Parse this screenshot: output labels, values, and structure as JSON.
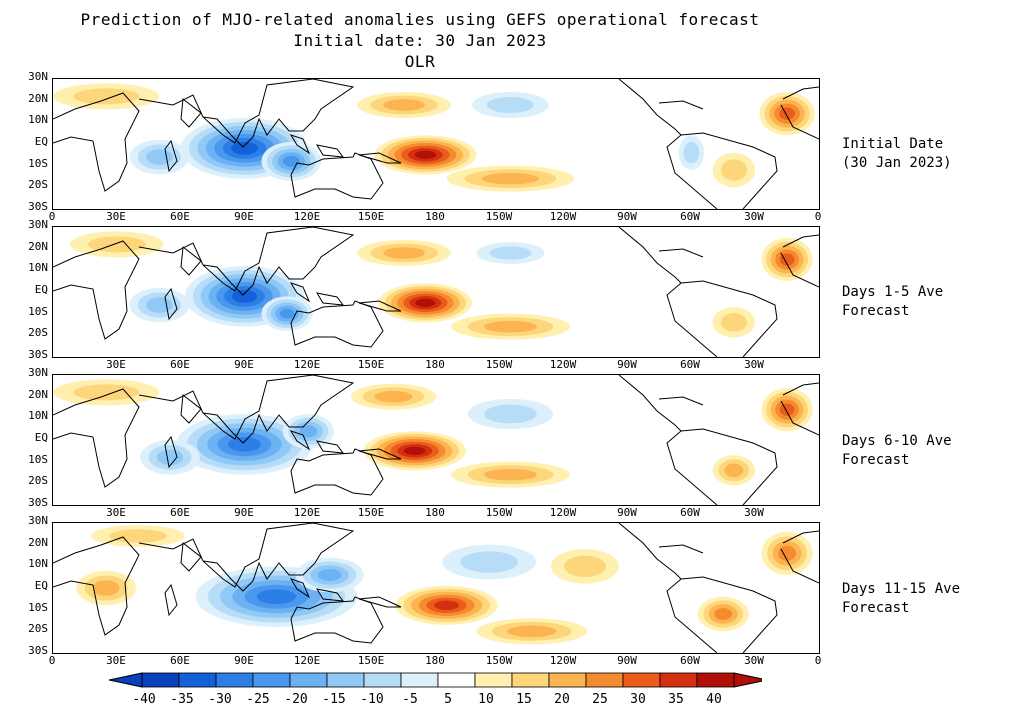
{
  "title": {
    "line1": "Prediction of MJO-related anomalies using GEFS operational forecast",
    "line2": "Initial date: 30 Jan 2023",
    "line3": "OLR"
  },
  "lat_labels": [
    "30N",
    "20N",
    "10N",
    "EQ",
    "10S",
    "20S",
    "30S"
  ],
  "lon_labels": [
    "0",
    "30E",
    "60E",
    "90E",
    "120E",
    "150E",
    "180",
    "150W",
    "120W",
    "90W",
    "60W",
    "30W",
    "0"
  ],
  "panels": [
    {
      "label_line1": "Initial Date",
      "label_line2": "(30 Jan 2023)"
    },
    {
      "label_line1": "Days 1-5 Ave",
      "label_line2": "Forecast"
    },
    {
      "label_line1": "Days 6-10 Ave",
      "label_line2": "Forecast"
    },
    {
      "label_line1": "Days 11-15 Ave",
      "label_line2": "Forecast"
    }
  ],
  "colorbar": {
    "labels": [
      "-40",
      "-35",
      "-30",
      "-25",
      "-20",
      "-15",
      "-10",
      "-5",
      "5",
      "10",
      "15",
      "20",
      "25",
      "30",
      "35",
      "40"
    ],
    "colors": [
      "#0a3fbe",
      "#1460d8",
      "#2a7ee6",
      "#4a98ee",
      "#6cb2f3",
      "#90c8f6",
      "#b6dcf8",
      "#dcf0fb",
      "#ffffff",
      "#fff0b0",
      "#fdd57a",
      "#fbb450",
      "#f68a2e",
      "#ea5c1c",
      "#d33010",
      "#b01008"
    ]
  },
  "map_fields": [
    {
      "anomalies": [
        {
          "lon": 90,
          "lat": -2,
          "rx": 30,
          "ry": 14,
          "level": -7
        },
        {
          "lon": 112,
          "lat": -8,
          "rx": 14,
          "ry": 9,
          "level": -5
        },
        {
          "lon": 50,
          "lat": -6,
          "rx": 14,
          "ry": 8,
          "level": -3
        },
        {
          "lon": 215,
          "lat": 18,
          "rx": 18,
          "ry": 6,
          "level": -2
        },
        {
          "lon": 300,
          "lat": -4,
          "rx": 6,
          "ry": 8,
          "level": -2
        },
        {
          "lon": 175,
          "lat": -5,
          "rx": 24,
          "ry": 9,
          "level": 7
        },
        {
          "lon": 215,
          "lat": -16,
          "rx": 30,
          "ry": 6,
          "level": 3
        },
        {
          "lon": 165,
          "lat": 18,
          "rx": 22,
          "ry": 6,
          "level": 3
        },
        {
          "lon": 345,
          "lat": 14,
          "rx": 13,
          "ry": 10,
          "level": 5
        },
        {
          "lon": 25,
          "lat": 22,
          "rx": 25,
          "ry": 6,
          "level": 2
        },
        {
          "lon": 320,
          "lat": -12,
          "rx": 10,
          "ry": 8,
          "level": 2
        }
      ]
    },
    {
      "anomalies": [
        {
          "lon": 90,
          "lat": -2,
          "rx": 28,
          "ry": 14,
          "level": -7
        },
        {
          "lon": 110,
          "lat": -10,
          "rx": 12,
          "ry": 8,
          "level": -5
        },
        {
          "lon": 50,
          "lat": -6,
          "rx": 14,
          "ry": 8,
          "level": -3
        },
        {
          "lon": 215,
          "lat": 18,
          "rx": 16,
          "ry": 5,
          "level": -2
        },
        {
          "lon": 175,
          "lat": -5,
          "rx": 22,
          "ry": 9,
          "level": 7
        },
        {
          "lon": 215,
          "lat": -16,
          "rx": 28,
          "ry": 6,
          "level": 3
        },
        {
          "lon": 165,
          "lat": 18,
          "rx": 22,
          "ry": 6,
          "level": 3
        },
        {
          "lon": 345,
          "lat": 15,
          "rx": 12,
          "ry": 10,
          "level": 5
        },
        {
          "lon": 30,
          "lat": 22,
          "rx": 22,
          "ry": 6,
          "level": 2
        },
        {
          "lon": 320,
          "lat": -14,
          "rx": 10,
          "ry": 7,
          "level": 2
        }
      ]
    },
    {
      "anomalies": [
        {
          "lon": 90,
          "lat": -2,
          "rx": 32,
          "ry": 14,
          "level": -6
        },
        {
          "lon": 120,
          "lat": 4,
          "rx": 12,
          "ry": 8,
          "level": -4
        },
        {
          "lon": 55,
          "lat": -8,
          "rx": 14,
          "ry": 8,
          "level": -3
        },
        {
          "lon": 215,
          "lat": 12,
          "rx": 20,
          "ry": 7,
          "level": -2
        },
        {
          "lon": 170,
          "lat": -5,
          "rx": 24,
          "ry": 9,
          "level": 7
        },
        {
          "lon": 215,
          "lat": -16,
          "rx": 28,
          "ry": 6,
          "level": 3
        },
        {
          "lon": 160,
          "lat": 20,
          "rx": 20,
          "ry": 6,
          "level": 3
        },
        {
          "lon": 345,
          "lat": 14,
          "rx": 12,
          "ry": 10,
          "level": 5
        },
        {
          "lon": 320,
          "lat": -14,
          "rx": 10,
          "ry": 7,
          "level": 3
        },
        {
          "lon": 25,
          "lat": 22,
          "rx": 25,
          "ry": 6,
          "level": 2
        }
      ]
    },
    {
      "anomalies": [
        {
          "lon": 105,
          "lat": -4,
          "rx": 38,
          "ry": 14,
          "level": -6
        },
        {
          "lon": 130,
          "lat": 6,
          "rx": 16,
          "ry": 8,
          "level": -4
        },
        {
          "lon": 205,
          "lat": 12,
          "rx": 22,
          "ry": 8,
          "level": -2
        },
        {
          "lon": 185,
          "lat": -8,
          "rx": 24,
          "ry": 9,
          "level": 6
        },
        {
          "lon": 225,
          "lat": -20,
          "rx": 26,
          "ry": 6,
          "level": 3
        },
        {
          "lon": 25,
          "lat": 0,
          "rx": 14,
          "ry": 8,
          "level": 3
        },
        {
          "lon": 345,
          "lat": 16,
          "rx": 12,
          "ry": 10,
          "level": 4
        },
        {
          "lon": 315,
          "lat": -12,
          "rx": 12,
          "ry": 8,
          "level": 4
        },
        {
          "lon": 40,
          "lat": 24,
          "rx": 22,
          "ry": 5,
          "level": 2
        },
        {
          "lon": 250,
          "lat": 10,
          "rx": 16,
          "ry": 8,
          "level": 2
        }
      ]
    }
  ]
}
